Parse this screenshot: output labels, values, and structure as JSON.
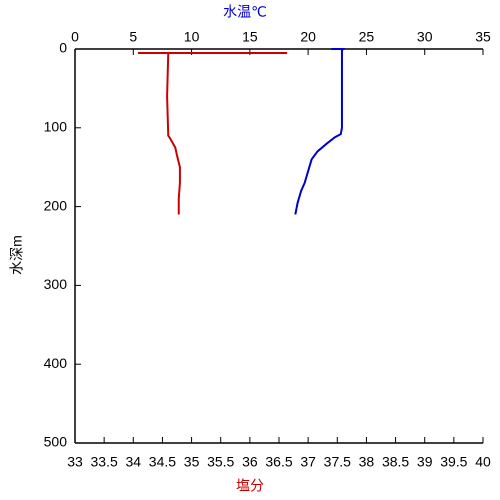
{
  "chart_data": {
    "type": "line",
    "x2_label": "水温℃",
    "x_label": "塩分",
    "y_label": "水深m",
    "x2_label_color": "#0000cc",
    "x_label_color": "#cc0000",
    "xlim": [
      33,
      40
    ],
    "xticks": [
      33,
      33.5,
      34,
      34.5,
      35,
      35.5,
      36,
      36.5,
      37,
      37.5,
      38,
      38.5,
      39,
      39.5,
      40
    ],
    "x2lim": [
      0,
      35
    ],
    "x2ticks": [
      0,
      5,
      10,
      15,
      20,
      25,
      30,
      35
    ],
    "ylim": [
      0,
      500
    ],
    "yticks": [
      0,
      100,
      200,
      300,
      400,
      500
    ],
    "y_inverted": true,
    "series": [
      {
        "color": "#0000cc",
        "axis": "x2",
        "x": [
          22.0,
          23.0,
          22.9,
          22.9,
          22.8,
          22.3,
          21.6,
          20.8,
          20.3,
          20.1,
          19.7,
          19.4,
          19.1,
          18.9
        ],
        "y": [
          0,
          0,
          2,
          100,
          108,
          112,
          120,
          130,
          140,
          150,
          170,
          180,
          195,
          210
        ]
      },
      {
        "color": "#cc0000",
        "axis": "x",
        "x": [
          34.08,
          36.64,
          34.6,
          34.58,
          34.6,
          34.62,
          34.72,
          34.75,
          34.8,
          34.8,
          34.78,
          34.78
        ],
        "y": [
          5,
          5,
          5,
          60,
          110,
          112,
          125,
          135,
          150,
          170,
          190,
          210
        ]
      }
    ]
  }
}
